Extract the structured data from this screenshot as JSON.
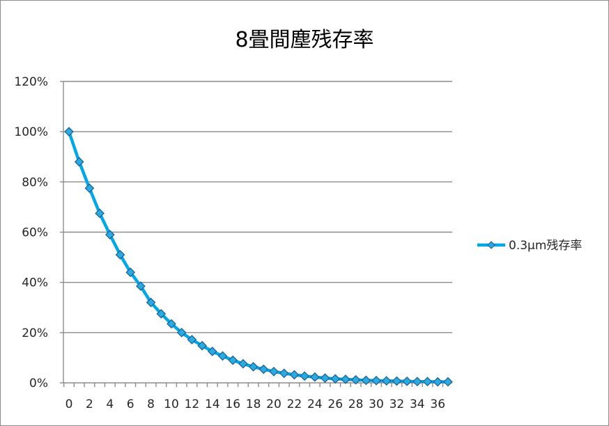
{
  "chart_data": {
    "type": "line",
    "title": "8畳間塵残存率",
    "xlabel": "",
    "ylabel": "",
    "x": [
      0,
      1,
      2,
      3,
      4,
      5,
      6,
      7,
      8,
      9,
      10,
      11,
      12,
      13,
      14,
      15,
      16,
      17,
      18,
      19,
      20,
      21,
      22,
      23,
      24,
      25,
      26,
      27,
      28,
      29,
      30,
      31,
      32,
      33,
      34,
      35,
      36,
      37
    ],
    "x_tick_labels": [
      "0",
      "2",
      "4",
      "6",
      "8",
      "10",
      "12",
      "14",
      "16",
      "18",
      "20",
      "22",
      "24",
      "26",
      "28",
      "30",
      "32",
      "34",
      "36"
    ],
    "xlim": [
      0,
      37
    ],
    "ylim": [
      0,
      1.2
    ],
    "y_tick_labels": [
      "0%",
      "20%",
      "40%",
      "60%",
      "80%",
      "100%",
      "120%"
    ],
    "grid": true,
    "legend_position": "right",
    "series": [
      {
        "name": "0.3μm残存率",
        "color": "#00a8e8",
        "marker": "diamond",
        "values": [
          1.0,
          0.88,
          0.775,
          0.675,
          0.59,
          0.51,
          0.44,
          0.385,
          0.32,
          0.275,
          0.235,
          0.2,
          0.172,
          0.148,
          0.125,
          0.107,
          0.09,
          0.076,
          0.064,
          0.054,
          0.045,
          0.038,
          0.032,
          0.027,
          0.023,
          0.019,
          0.016,
          0.014,
          0.012,
          0.01,
          0.009,
          0.008,
          0.007,
          0.006,
          0.005,
          0.005,
          0.004,
          0.004
        ]
      }
    ]
  }
}
